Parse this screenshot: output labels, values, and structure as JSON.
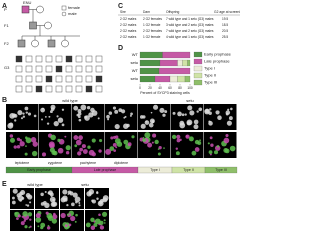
{
  "figure": {
    "a": {
      "label": "A",
      "founder": "ENU",
      "generations": [
        "P",
        "F1",
        "F2",
        "G3"
      ],
      "legend": [
        "female",
        "male"
      ]
    },
    "b": {
      "label": "B",
      "columns": [
        "wild type",
        "setu"
      ],
      "stages": [
        "leptotene",
        "zygotene",
        "pachytene",
        "diplotene"
      ],
      "groups": [
        "Early prophase",
        "Late prophase",
        "Type I",
        "Type II",
        "Type III"
      ]
    },
    "c": {
      "label": "C",
      "header": [
        "Sire",
        "Dam",
        "Offspring",
        "G2 age at screening (dpp)"
      ],
      "rows": [
        [
          "2 G2 males",
          "2 G2 females",
          "7 wild type and 1 setu (G3) males",
          "19.5"
        ],
        [
          "2 G2 males",
          "1 G2 female",
          "3 wild type and 2 setu (G3) males",
          "18.5"
        ],
        [
          "2 G2 males",
          "2 G2 females",
          "7 wild type and 2 setu (G3) males",
          "20.5"
        ],
        [
          "2 G2 males",
          "1 G2 female",
          "4 wild type and 1 setu (G3) males",
          "25.5"
        ]
      ]
    },
    "d": {
      "label": "D",
      "row_labels": [
        "WT",
        "setu",
        "WT",
        "setu"
      ],
      "x_label": "Percent of SYCP3 staining cells",
      "xlim": [
        0,
        100
      ],
      "xticks": [
        0,
        20,
        40,
        60,
        80,
        100
      ],
      "series": [
        {
          "name": "Early prophase",
          "color": "#4f9346",
          "values": [
            45,
            40,
            38,
            30
          ]
        },
        {
          "name": "Late prophase",
          "color": "#c55aa5",
          "values": [
            55,
            35,
            62,
            30
          ]
        },
        {
          "name": "Type I",
          "color": "#ececd8",
          "values": [
            0,
            10,
            0,
            15
          ]
        },
        {
          "name": "Type II",
          "color": "#cfe3a6",
          "values": [
            0,
            10,
            0,
            15
          ]
        },
        {
          "name": "Type III",
          "color": "#8fbf6a",
          "values": [
            0,
            5,
            0,
            10
          ]
        }
      ]
    },
    "e": {
      "label": "E",
      "columns": [
        "wild type",
        "setu"
      ]
    }
  }
}
